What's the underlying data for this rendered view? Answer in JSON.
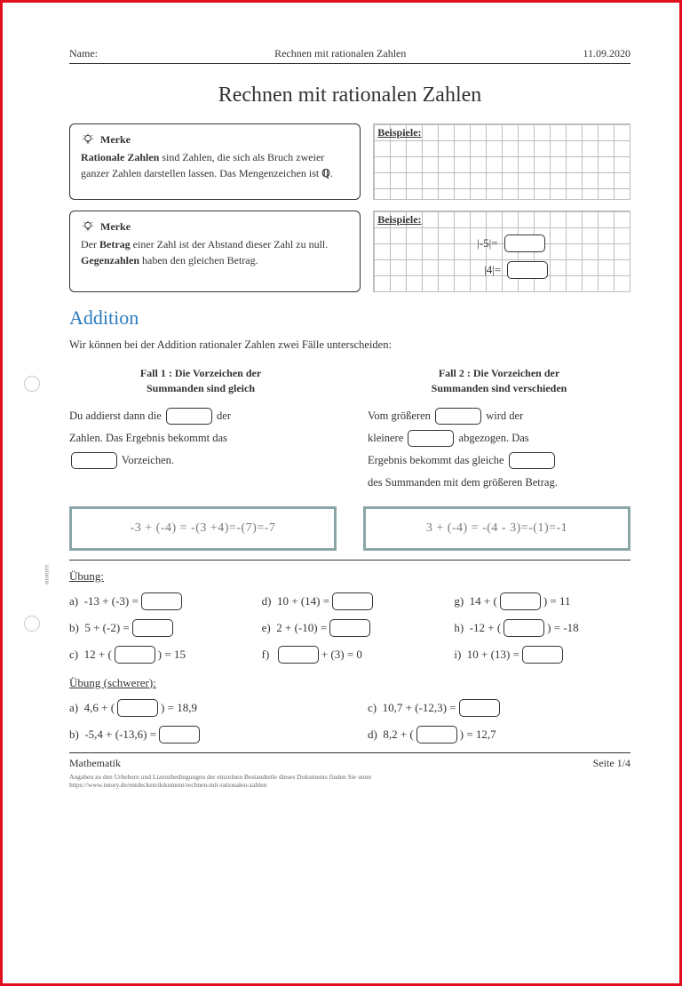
{
  "header": {
    "name_label": "Name:",
    "doc_title": "Rechnen mit rationalen Zahlen",
    "date": "11.09.2020"
  },
  "title": "Rechnen mit rationalen Zahlen",
  "side_label": "anonym",
  "merke1": {
    "head": "Merke",
    "text_1": "Rationale Zahlen",
    "text_2": " sind Zahlen, die sich als Bruch zweier ganzer Zahlen darstellen lassen. Das Mengenzeichen ist ",
    "symbol": "ℚ",
    "dot": "."
  },
  "merke2": {
    "head": "Merke",
    "t1": "Der ",
    "b1": "Betrag",
    "t2": " einer Zahl ist der Abstand dieser Zahl zu null. ",
    "b2": "Gegenzahlen",
    "t3": " haben den gleichen Betrag."
  },
  "beispiele_label": "Beispiele:",
  "grid2_rows": [
    "|-5|=",
    "|4|="
  ],
  "section_title": "Addition",
  "intro": "Wir können bei der Addition rationaler Zahlen zwei Fälle unterscheiden:",
  "case1": {
    "head1": "Fall 1 :  Die Vorzeichen der",
    "head2": "Summanden sind gleich",
    "line1a": "Du addierst dann die ",
    "line1b": " der",
    "line2": "Zahlen. Das Ergebnis bekommt das",
    "line3": " Vorzeichen."
  },
  "case2": {
    "head1": "Fall 2 :  Die Vorzeichen der",
    "head2": "Summanden sind verschieden",
    "l1a": "Vom größeren ",
    "l1b": " wird der",
    "l2a": "kleinere ",
    "l2b": " abgezogen. Das",
    "l3a": "Ergebnis bekommt das gleiche ",
    "l4": "des Summanden mit dem größeren Betrag."
  },
  "examples": {
    "ex1": "-3 + (-4) = -(3 +4)=-(7)=-7",
    "ex2": "3 + (-4) = -(4 - 3)=-(1)=-1"
  },
  "ubung1_label": "Übung:",
  "ubung1": [
    {
      "k": "a)",
      "pre": "-13 + (-3) = ",
      "box_after": true,
      "post": ""
    },
    {
      "k": "d)",
      "pre": "10 + (14) = ",
      "box_after": true,
      "post": ""
    },
    {
      "k": "g)",
      "pre": "14 + ( ",
      "box_after": true,
      "post": " ) = 11"
    },
    {
      "k": "b)",
      "pre": "5 + (-2) = ",
      "box_after": true,
      "post": ""
    },
    {
      "k": "e)",
      "pre": "2 + (-10) = ",
      "box_after": true,
      "post": ""
    },
    {
      "k": "h)",
      "pre": "-12 + ( ",
      "box_after": true,
      "post": " ) = -18"
    },
    {
      "k": "c)",
      "pre": "12 + ( ",
      "box_after": true,
      "post": " ) = 15"
    },
    {
      "k": "f)",
      "pre": "",
      "box_first": true,
      "post": " + (3) = 0"
    },
    {
      "k": "i)",
      "pre": "10 + (13) = ",
      "box_after": true,
      "post": ""
    }
  ],
  "ubung2_label": "Übung (schwerer):",
  "ubung2": [
    {
      "k": "a)",
      "pre": "4,6 + ( ",
      "post": " ) = 18,9"
    },
    {
      "k": "c)",
      "pre": "10,7 + (-12,3) = ",
      "post": ""
    },
    {
      "k": "b)",
      "pre": "-5,4 + (-13,6) = ",
      "post": ""
    },
    {
      "k": "d)",
      "pre": "8,2 + ( ",
      "post": " ) = 12,7"
    }
  ],
  "footer": {
    "subject": "Mathematik",
    "page": "Seite 1/4"
  },
  "fine1": "Angaben zu den Urhebern und Lizenzbedingungen der einzelnen Bestandteile dieses Dokuments finden Sie unter",
  "fine2": "https://www.tutory.de/entdecken/dokument/rechnen-mit-rationalen-zahlen",
  "colors": {
    "border": "#e01020",
    "text": "#333333",
    "section": "#2b7bbf",
    "example_border": "#8aa6a6",
    "grid": "#bdbdbd"
  }
}
